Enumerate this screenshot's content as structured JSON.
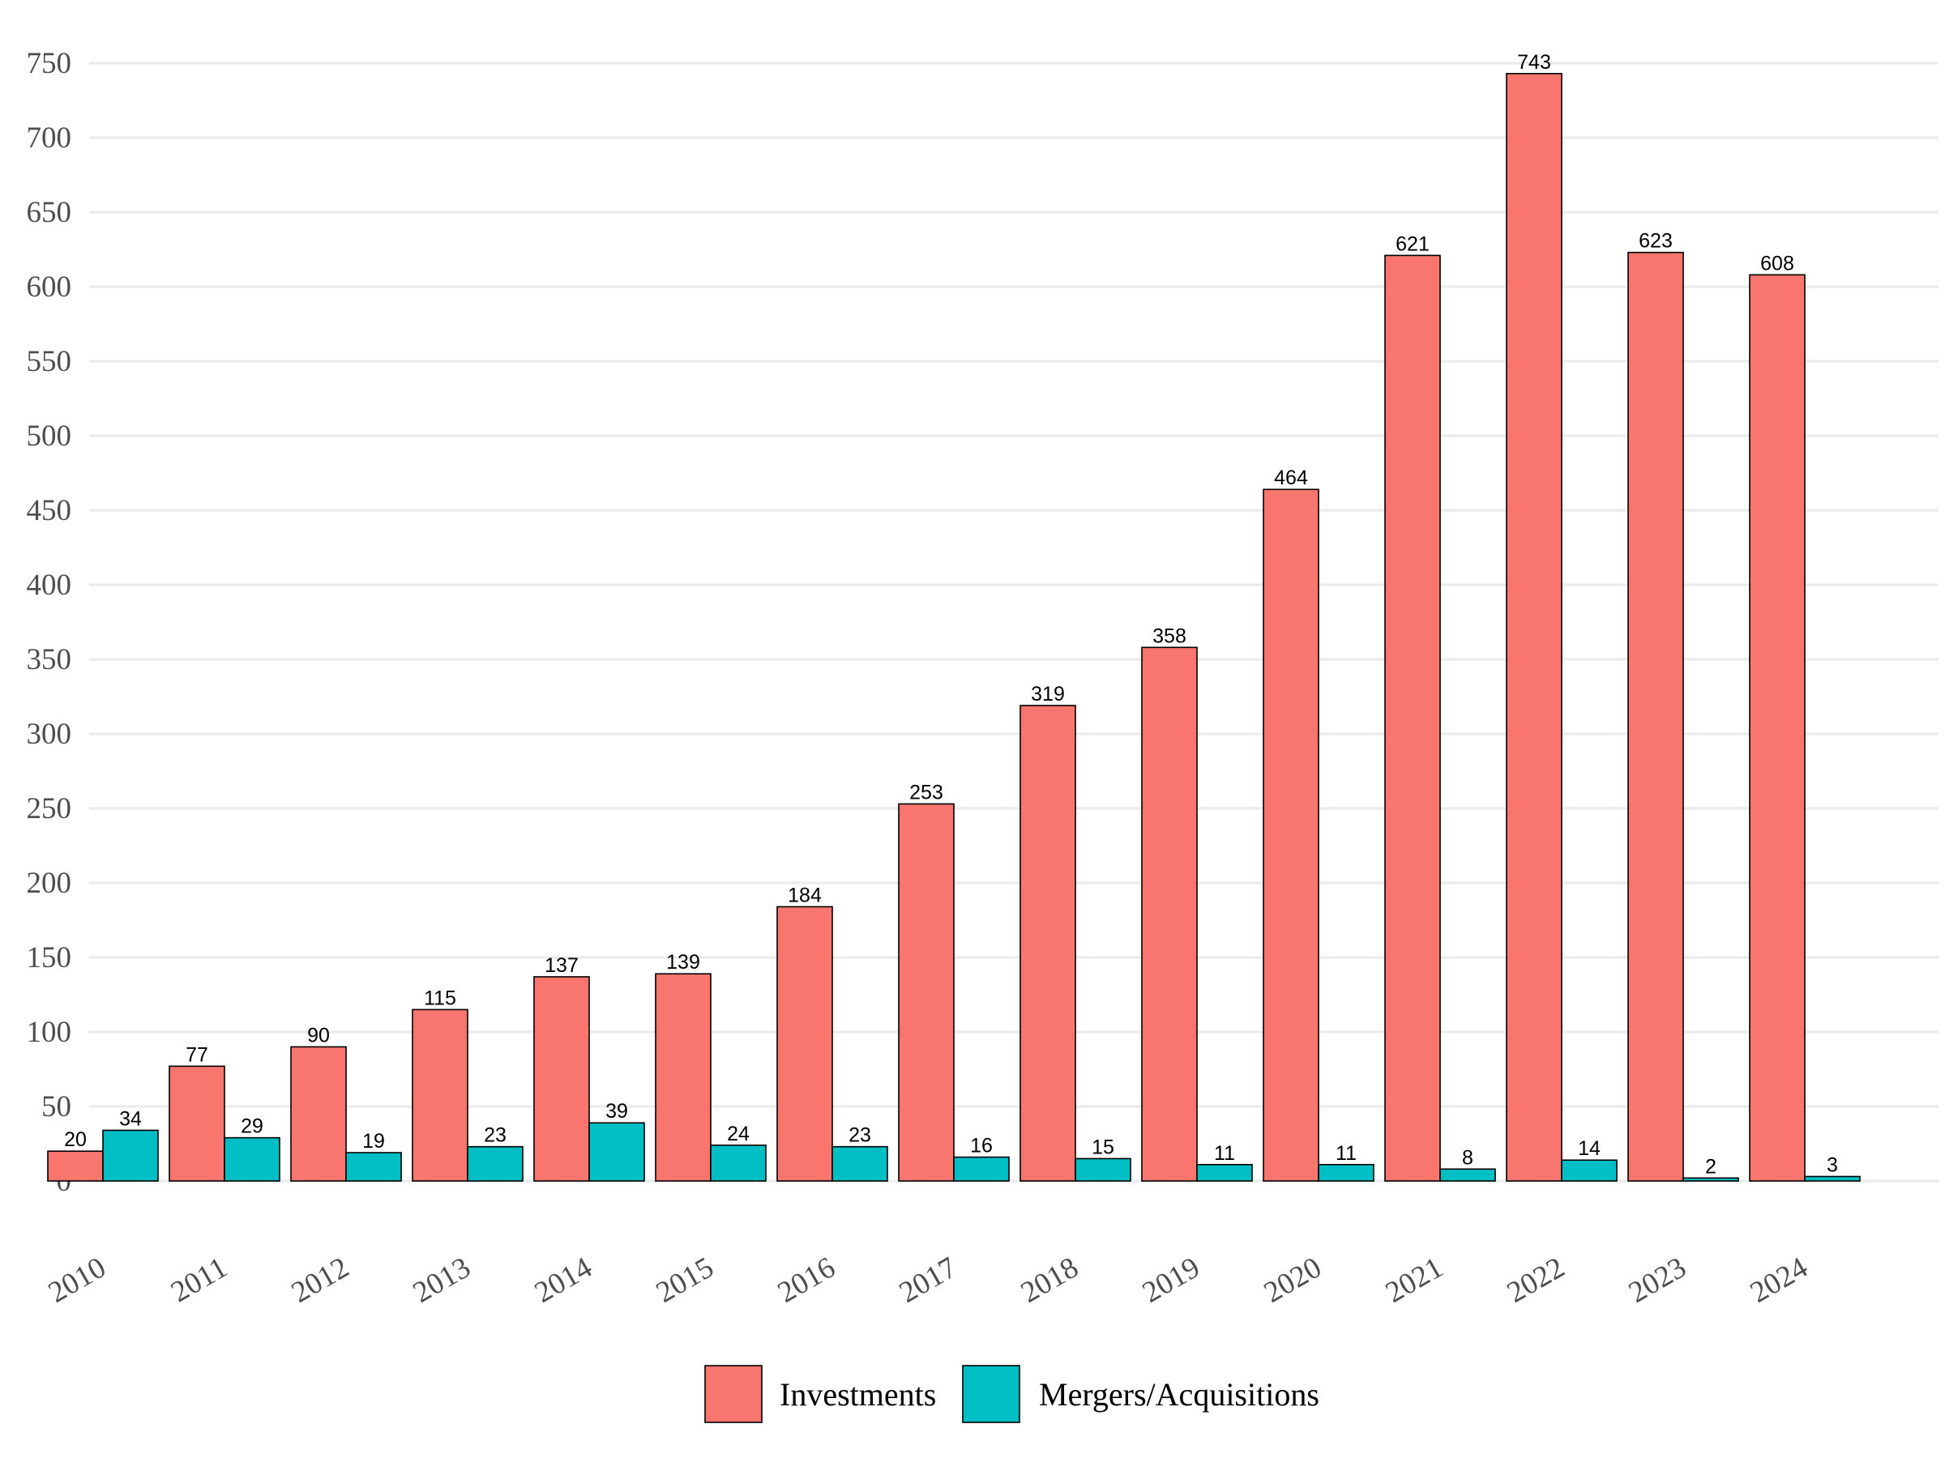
{
  "chart_data": {
    "type": "bar",
    "categories": [
      "2010",
      "2011",
      "2012",
      "2013",
      "2014",
      "2015",
      "2016",
      "2017",
      "2018",
      "2019",
      "2020",
      "2021",
      "2022",
      "2023",
      "2024"
    ],
    "series": [
      {
        "name": "Investments",
        "color": "#F8766D",
        "values": [
          20,
          77,
          90,
          115,
          137,
          139,
          184,
          253,
          319,
          358,
          464,
          621,
          743,
          623,
          608
        ]
      },
      {
        "name": "Mergers/Acquisitions",
        "color": "#00BFC4",
        "values": [
          34,
          29,
          19,
          23,
          39,
          24,
          23,
          16,
          15,
          11,
          11,
          8,
          14,
          2,
          3
        ]
      }
    ],
    "ylim": [
      0,
      750
    ],
    "yticks": [
      "0",
      "50",
      "100",
      "150",
      "200",
      "250",
      "300",
      "350",
      "400",
      "450",
      "500",
      "550",
      "600",
      "650",
      "700",
      "750"
    ],
    "grid": true,
    "legend_position": "bottom",
    "data_labels": true
  }
}
